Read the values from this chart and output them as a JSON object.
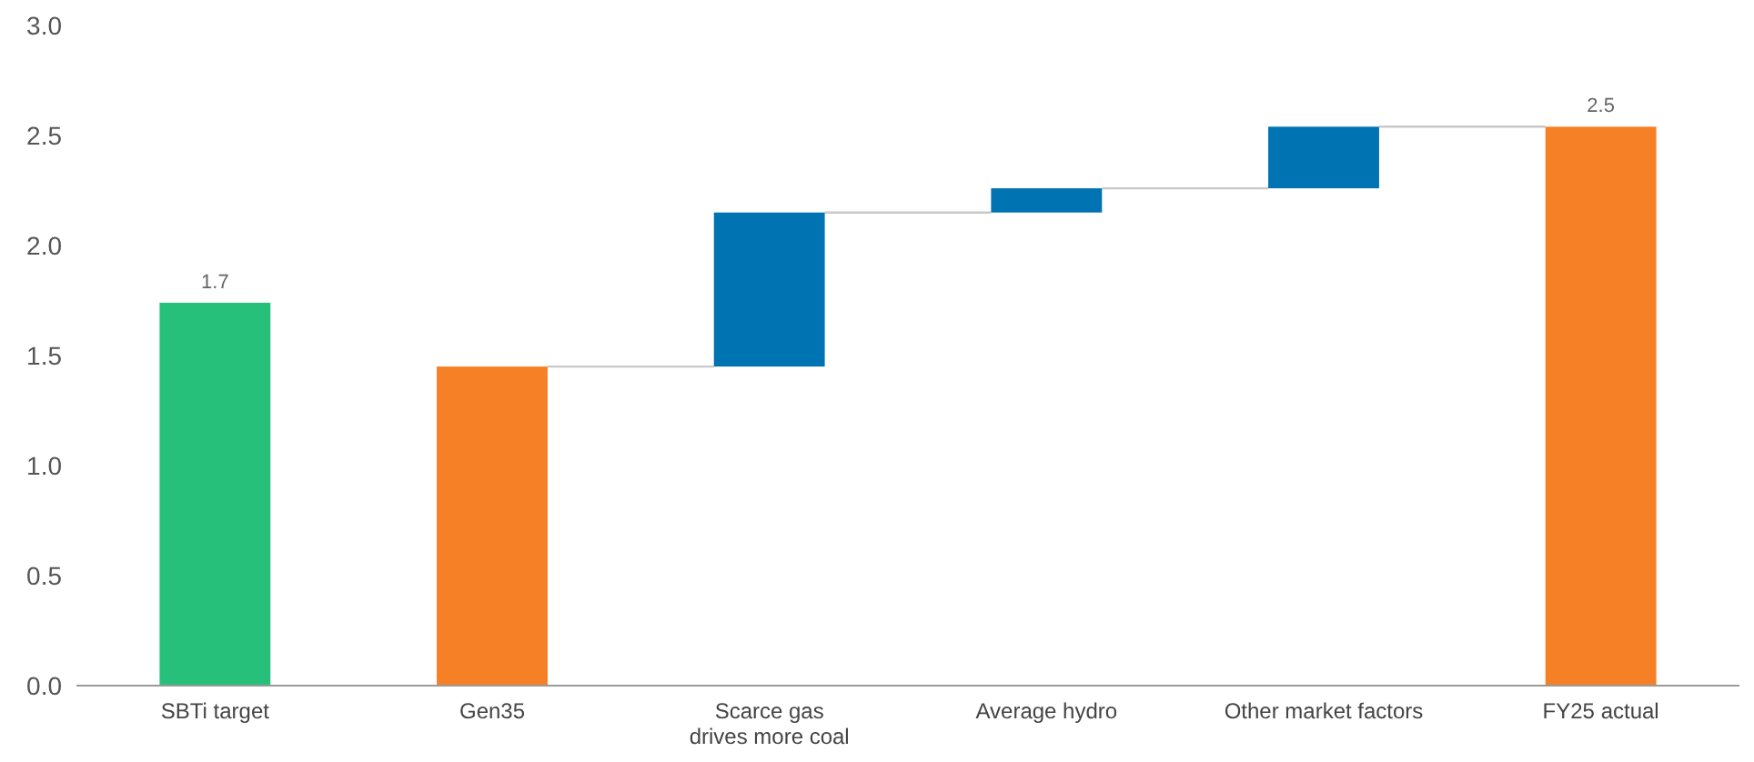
{
  "chart_data": {
    "type": "bar",
    "categories": [
      "SBTi target",
      "Gen35",
      "Scarce gas\ndrives more coal",
      "Average hydro",
      "Other market factors",
      "FY25 actual"
    ],
    "values": [
      1.74,
      1.45,
      0.7,
      0.11,
      0.28,
      2.54
    ],
    "base": [
      0,
      0,
      1.45,
      2.15,
      2.26,
      0
    ],
    "colors": [
      "#27c07b",
      "#f58025",
      "#0073b2",
      "#0073b2",
      "#0073b2",
      "#f58025"
    ],
    "value_labels": [
      "1.7",
      null,
      null,
      null,
      null,
      "2.5"
    ],
    "ylim": [
      0,
      3
    ],
    "yticks": [
      {
        "value": 0,
        "label": "0.0"
      },
      {
        "value": 0.5,
        "label": "0.5"
      },
      {
        "value": 1,
        "label": "1.0"
      },
      {
        "value": 1.5,
        "label": "1.5"
      },
      {
        "value": 2,
        "label": "2.0"
      },
      {
        "value": 2.5,
        "label": "2.5"
      },
      {
        "value": 3,
        "label": "3.0"
      }
    ],
    "grid": false
  }
}
